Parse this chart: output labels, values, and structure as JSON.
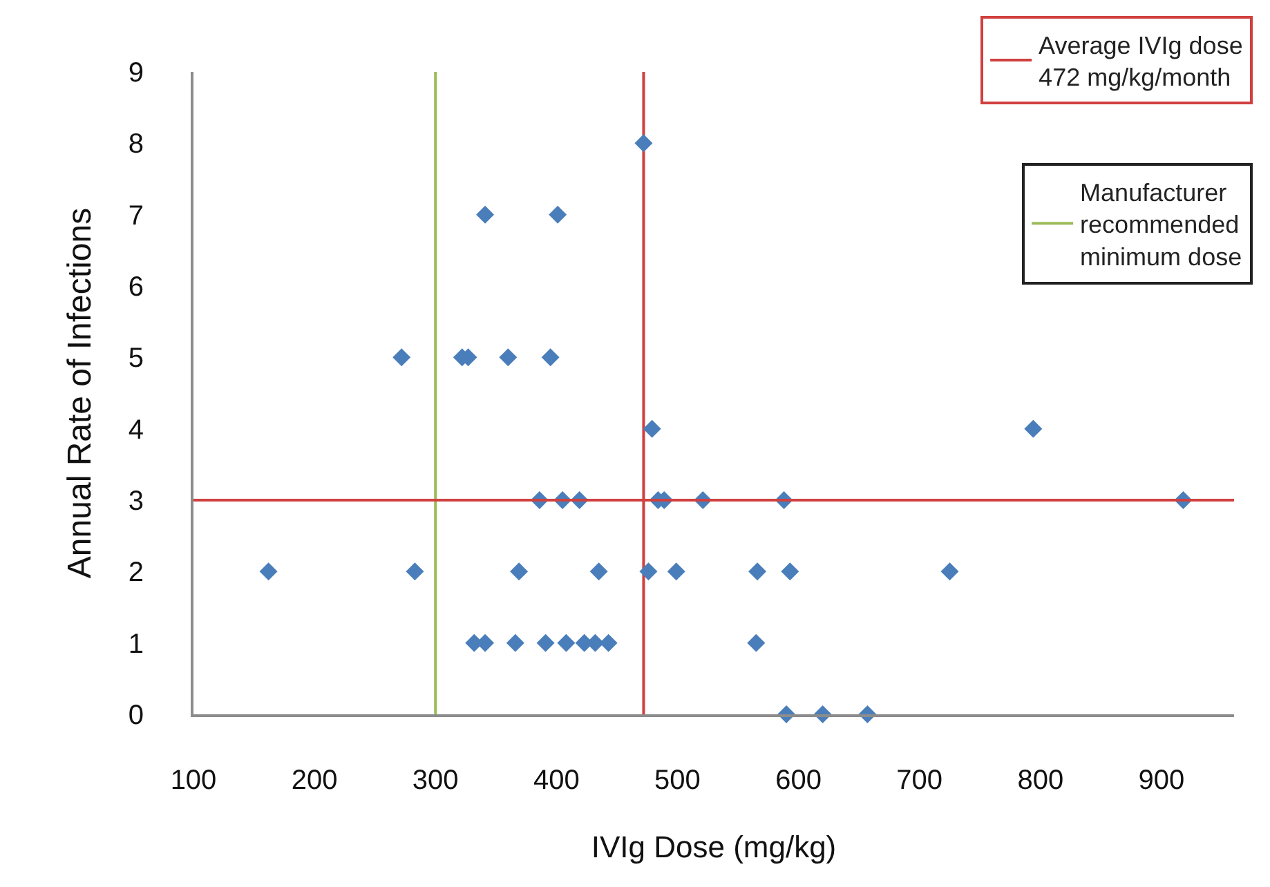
{
  "chart_data": {
    "type": "scatter",
    "xlabel": "IVIg Dose (mg/kg)",
    "ylabel": "Annual Rate of Infections",
    "marker": "diamond",
    "grid": false,
    "legend": "top right",
    "series": [
      {
        "type": "line",
        "name": "Average IVIg dose 472 mg/kg/month",
        "marker": "none",
        "color": "#d0403f",
        "x": [
          472,
          472
        ],
        "values": [
          0,
          9
        ]
      },
      {
        "type": "line",
        "name": "Manufacturer recommended minimum dose",
        "marker": "none",
        "color": "#9bbb59",
        "x": [
          300,
          300
        ],
        "values": [
          0,
          9
        ]
      },
      {
        "color": "#4a7ebb",
        "x": [
          472,
          341,
          401,
          272,
          322,
          327,
          360,
          395,
          479,
          794,
          386,
          405,
          419,
          484,
          489,
          521,
          588,
          918,
          162,
          283,
          369,
          435,
          476,
          499,
          566,
          593,
          725,
          332,
          341,
          366,
          391,
          408,
          423,
          432,
          443,
          565,
          590,
          620,
          657
        ],
        "values": [
          8,
          7,
          7,
          5,
          5,
          5,
          5,
          5,
          4,
          4,
          3,
          3,
          3,
          3,
          3,
          3,
          3,
          3,
          2,
          2,
          2,
          2,
          2,
          2,
          2,
          2,
          2,
          1,
          1,
          1,
          1,
          1,
          1,
          1,
          1,
          1,
          0,
          0,
          0
        ]
      }
    ],
    "xlim": [
      100,
      960
    ],
    "xticks": [
      100,
      200,
      300,
      400,
      500,
      600,
      700,
      800,
      900
    ],
    "ylim": [
      0,
      9
    ],
    "yticks": [
      0,
      1,
      2,
      3,
      4,
      5,
      6,
      7,
      8,
      9
    ],
    "ref_lines": [
      {
        "axis": "y",
        "value": 3,
        "color": "#d0403f"
      }
    ]
  }
}
